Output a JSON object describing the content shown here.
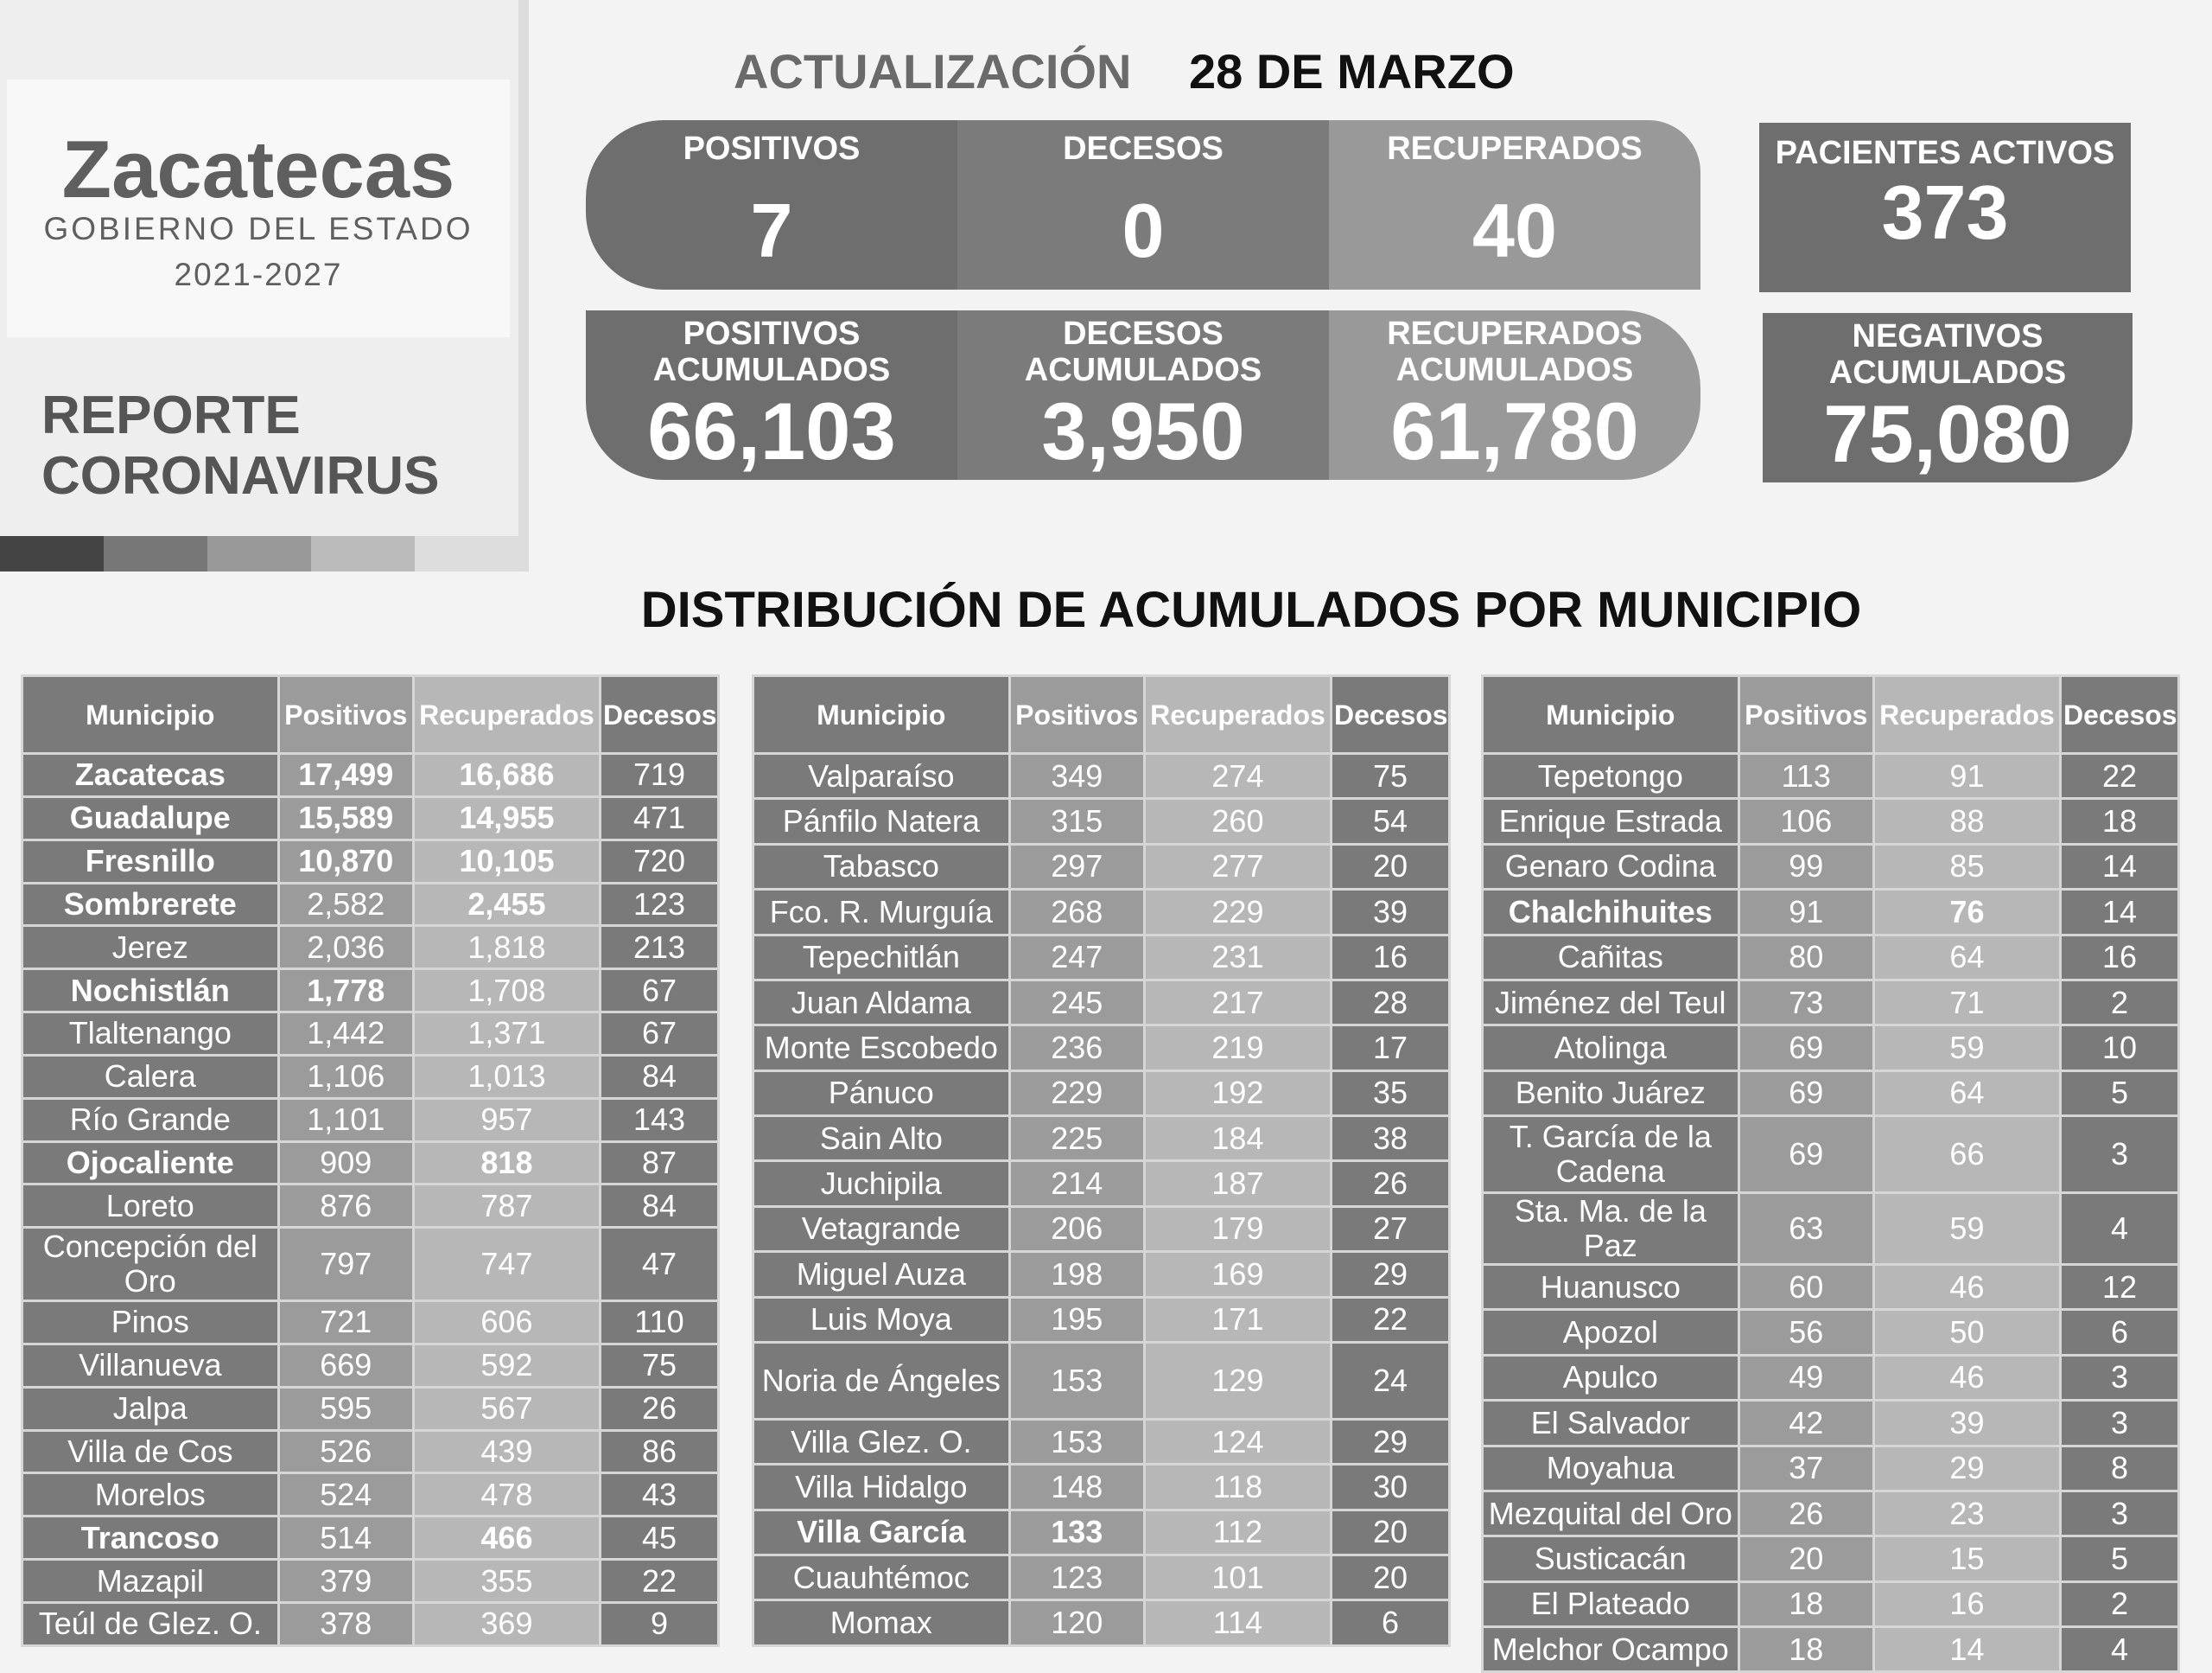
{
  "logo": {
    "name": "Zacatecas",
    "subtitle": "GOBIERNO DEL ESTADO",
    "years": "2021-2027",
    "colors": [
      "#444444",
      "#777777",
      "#999999",
      "#bbbbbb",
      "#dddddd"
    ]
  },
  "report": {
    "line1": "REPORTE",
    "line2": "CORONAVIRUS"
  },
  "update": {
    "label": "ACTUALIZACIÓN",
    "date": "28 DE MARZO"
  },
  "daily": [
    {
      "label": "POSITIVOS",
      "value": "7",
      "color": "#6e6e6e"
    },
    {
      "label": "DECESOS",
      "value": "0",
      "color": "#7b7b7b"
    },
    {
      "label": "RECUPERADOS",
      "value": "40",
      "color": "#999999"
    }
  ],
  "cumulative": [
    {
      "label1": "POSITIVOS",
      "label2": "ACUMULADOS",
      "value": "66,103",
      "color": "#6e6e6e"
    },
    {
      "label1": "DECESOS",
      "label2": "ACUMULADOS",
      "value": "3,950",
      "color": "#7b7b7b"
    },
    {
      "label1": "RECUPERADOS",
      "label2": "ACUMULADOS",
      "value": "61,780",
      "color": "#999999"
    }
  ],
  "activos": {
    "label": "PACIENTES ACTIVOS",
    "value": "373"
  },
  "negativos": {
    "label1": "NEGATIVOS",
    "label2": "ACUMULADOS",
    "value": "75,080"
  },
  "distribution_title": "DISTRIBUCIÓN DE ACUMULADOS POR MUNICIPIO",
  "headers": [
    "Municipio",
    "Positivos",
    "Recuperados",
    "Decesos"
  ],
  "tables": [
    [
      {
        "m": "Zacatecas",
        "p": "17,499",
        "r": "16,686",
        "d": "719",
        "bold": [
          1,
          1,
          1,
          0
        ]
      },
      {
        "m": "Guadalupe",
        "p": "15,589",
        "r": "14,955",
        "d": "471",
        "bold": [
          1,
          1,
          1,
          0
        ]
      },
      {
        "m": "Fresnillo",
        "p": "10,870",
        "r": "10,105",
        "d": "720",
        "bold": [
          1,
          1,
          1,
          0
        ]
      },
      {
        "m": "Sombrerete",
        "p": "2,582",
        "r": "2,455",
        "d": "123",
        "bold": [
          1,
          0,
          1,
          0
        ]
      },
      {
        "m": "Jerez",
        "p": "2,036",
        "r": "1,818",
        "d": "213"
      },
      {
        "m": "Nochistlán",
        "p": "1,778",
        "r": "1,708",
        "d": "67",
        "bold": [
          1,
          1,
          0,
          0
        ]
      },
      {
        "m": "Tlaltenango",
        "p": "1,442",
        "r": "1,371",
        "d": "67"
      },
      {
        "m": "Calera",
        "p": "1,106",
        "r": "1,013",
        "d": "84"
      },
      {
        "m": "Río Grande",
        "p": "1,101",
        "r": "957",
        "d": "143"
      },
      {
        "m": "Ojocaliente",
        "p": "909",
        "r": "818",
        "d": "87",
        "bold": [
          1,
          0,
          1,
          0
        ]
      },
      {
        "m": "Loreto",
        "p": "876",
        "r": "787",
        "d": "84"
      },
      {
        "m": "Concepción del Oro",
        "p": "797",
        "r": "747",
        "d": "47",
        "tall": 1
      },
      {
        "m": "Pinos",
        "p": "721",
        "r": "606",
        "d": "110"
      },
      {
        "m": "Villanueva",
        "p": "669",
        "r": "592",
        "d": "75"
      },
      {
        "m": "Jalpa",
        "p": "595",
        "r": "567",
        "d": "26"
      },
      {
        "m": "Villa de Cos",
        "p": "526",
        "r": "439",
        "d": "86"
      },
      {
        "m": "Morelos",
        "p": "524",
        "r": "478",
        "d": "43"
      },
      {
        "m": "Trancoso",
        "p": "514",
        "r": "466",
        "d": "45",
        "bold": [
          1,
          0,
          1,
          0
        ]
      },
      {
        "m": "Mazapil",
        "p": "379",
        "r": "355",
        "d": "22"
      },
      {
        "m": "Teúl de Glez. O.",
        "p": "378",
        "r": "369",
        "d": "9"
      }
    ],
    [
      {
        "m": "Valparaíso",
        "p": "349",
        "r": "274",
        "d": "75"
      },
      {
        "m": "Pánfilo Natera",
        "p": "315",
        "r": "260",
        "d": "54"
      },
      {
        "m": "Tabasco",
        "p": "297",
        "r": "277",
        "d": "20"
      },
      {
        "m": "Fco. R. Murguía",
        "p": "268",
        "r": "229",
        "d": "39"
      },
      {
        "m": "Tepechitlán",
        "p": "247",
        "r": "231",
        "d": "16"
      },
      {
        "m": "Juan Aldama",
        "p": "245",
        "r": "217",
        "d": "28"
      },
      {
        "m": "Monte Escobedo",
        "p": "236",
        "r": "219",
        "d": "17"
      },
      {
        "m": "Pánuco",
        "p": "229",
        "r": "192",
        "d": "35"
      },
      {
        "m": "Sain Alto",
        "p": "225",
        "r": "184",
        "d": "38"
      },
      {
        "m": "Juchipila",
        "p": "214",
        "r": "187",
        "d": "26"
      },
      {
        "m": "Vetagrande",
        "p": "206",
        "r": "179",
        "d": "27"
      },
      {
        "m": "Miguel Auza",
        "p": "198",
        "r": "169",
        "d": "29"
      },
      {
        "m": "Luis Moya",
        "p": "195",
        "r": "171",
        "d": "22"
      },
      {
        "m": "Noria de Ángeles",
        "p": "153",
        "r": "129",
        "d": "24",
        "tall": 1
      },
      {
        "m": "Villa Glez. O.",
        "p": "153",
        "r": "124",
        "d": "29"
      },
      {
        "m": "Villa Hidalgo",
        "p": "148",
        "r": "118",
        "d": "30"
      },
      {
        "m": "Villa García",
        "p": "133",
        "r": "112",
        "d": "20",
        "bold": [
          1,
          1,
          0,
          0
        ]
      },
      {
        "m": "Cuauhtémoc",
        "p": "123",
        "r": "101",
        "d": "20"
      },
      {
        "m": "Momax",
        "p": "120",
        "r": "114",
        "d": "6"
      }
    ],
    [
      {
        "m": "Tepetongo",
        "p": "113",
        "r": "91",
        "d": "22"
      },
      {
        "m": "Enrique Estrada",
        "p": "106",
        "r": "88",
        "d": "18"
      },
      {
        "m": "Genaro Codina",
        "p": "99",
        "r": "85",
        "d": "14"
      },
      {
        "m": "Chalchihuites",
        "p": "91",
        "r": "76",
        "d": "14",
        "bold": [
          1,
          0,
          1,
          0
        ]
      },
      {
        "m": "Cañitas",
        "p": "80",
        "r": "64",
        "d": "16"
      },
      {
        "m": "Jiménez del Teul",
        "p": "73",
        "r": "71",
        "d": "2"
      },
      {
        "m": "Atolinga",
        "p": "69",
        "r": "59",
        "d": "10"
      },
      {
        "m": "Benito Juárez",
        "p": "69",
        "r": "64",
        "d": "5"
      },
      {
        "m": "T. García de la Cadena",
        "p": "69",
        "r": "66",
        "d": "3",
        "tall": 1
      },
      {
        "m": "Sta. Ma. de la Paz",
        "p": "63",
        "r": "59",
        "d": "4"
      },
      {
        "m": "Huanusco",
        "p": "60",
        "r": "46",
        "d": "12"
      },
      {
        "m": "Apozol",
        "p": "56",
        "r": "50",
        "d": "6"
      },
      {
        "m": "Apulco",
        "p": "49",
        "r": "46",
        "d": "3"
      },
      {
        "m": "El Salvador",
        "p": "42",
        "r": "39",
        "d": "3"
      },
      {
        "m": "Moyahua",
        "p": "37",
        "r": "29",
        "d": "8"
      },
      {
        "m": "Mezquital del Oro",
        "p": "26",
        "r": "23",
        "d": "3"
      },
      {
        "m": "Susticacán",
        "p": "20",
        "r": "15",
        "d": "5"
      },
      {
        "m": "El Plateado",
        "p": "18",
        "r": "16",
        "d": "2"
      },
      {
        "m": "Melchor Ocampo",
        "p": "18",
        "r": "14",
        "d": "4"
      }
    ]
  ]
}
